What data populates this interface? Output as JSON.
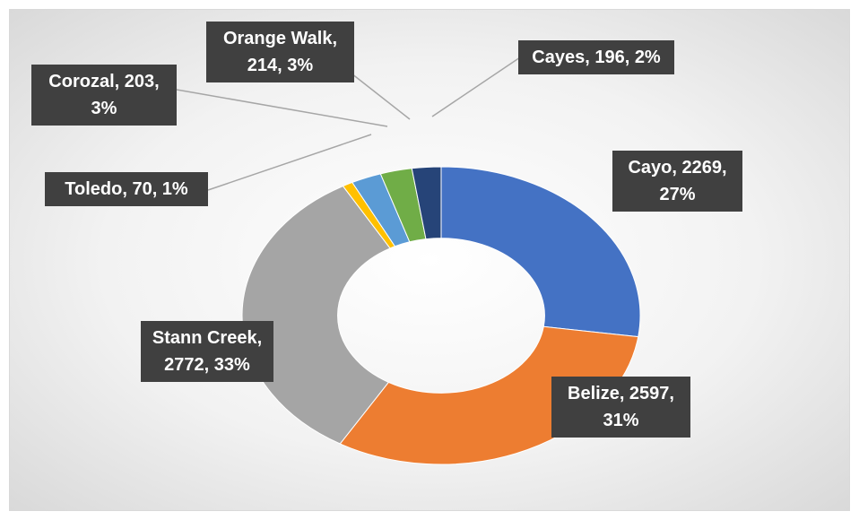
{
  "chart_data": {
    "type": "donut",
    "categories": [
      "Cayo",
      "Belize",
      "Stann Creek",
      "Toledo",
      "Corozal",
      "Orange Walk",
      "Cayes"
    ],
    "values": [
      2269,
      2597,
      2772,
      70,
      203,
      214,
      196
    ],
    "value_labels": [
      "Cayo, 2269, 27%",
      "Belize, 2597, 31%",
      "Stann Creek, 2772, 33%",
      "Toledo, 70, 1%",
      "Corozal, 203, 3%",
      "Orange Walk, 214, 3%",
      "Cayes, 196, 2%"
    ],
    "colors": [
      "#4472c4",
      "#ed7d31",
      "#a5a5a5",
      "#ffc000",
      "#5b9bd5",
      "#70ad47",
      "#264478"
    ]
  }
}
